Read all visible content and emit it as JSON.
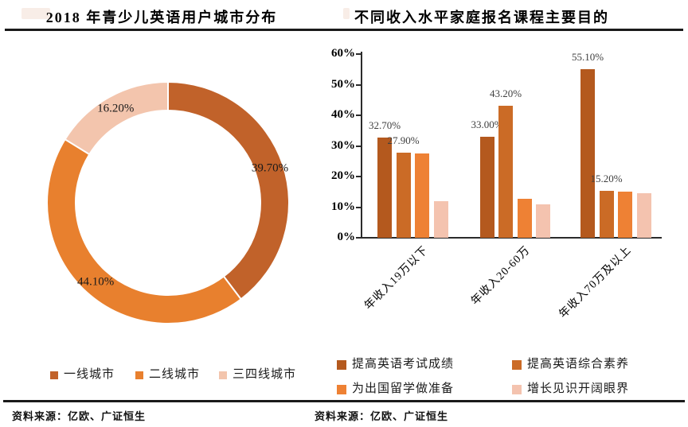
{
  "chart_data": [
    {
      "type": "pie",
      "subtype": "donut",
      "title": "2018 年青少儿英语用户城市分布",
      "categories": [
        "一线城市",
        "二线城市",
        "三四线城市"
      ],
      "values": [
        39.7,
        44.1,
        16.2
      ],
      "data_labels": [
        "39.70%",
        "44.10%",
        "16.20%"
      ],
      "colors": [
        "#C1622A",
        "#E8802E",
        "#F3C5AD"
      ],
      "legend_position": "bottom",
      "source": "资料来源：亿欧、广证恒生"
    },
    {
      "type": "bar",
      "title": "不同收入水平家庭报名课程主要目的",
      "categories": [
        "年收入19万以下",
        "年收入20-60万",
        "年收入70万及以上"
      ],
      "series": [
        {
          "name": "提高英语考试成绩",
          "color": "#B4591E",
          "values": [
            32.7,
            33.0,
            55.1
          ],
          "labels": [
            "32.70%",
            "33.00%",
            "55.10%"
          ]
        },
        {
          "name": "提高英语综合素养",
          "color": "#CB6B26",
          "values": [
            27.9,
            43.2,
            15.2
          ],
          "labels": [
            "27.90%",
            "43.20%",
            "15.20%"
          ]
        },
        {
          "name": "为出国留学做准备",
          "color": "#EE8134",
          "values": [
            27.5,
            12.7,
            15.0
          ],
          "labels": [
            null,
            null,
            null
          ]
        },
        {
          "name": "增长见识开阔眼界",
          "color": "#F4C3AF",
          "values": [
            12.0,
            10.9,
            14.5
          ],
          "labels": [
            null,
            null,
            null
          ]
        }
      ],
      "ylim": [
        0,
        60
      ],
      "yticks": [
        "0%",
        "10%",
        "20%",
        "30%",
        "40%",
        "50%",
        "60%"
      ],
      "grid": false,
      "legend_position": "bottom",
      "source": "资料来源：亿欧、广证恒生"
    }
  ]
}
